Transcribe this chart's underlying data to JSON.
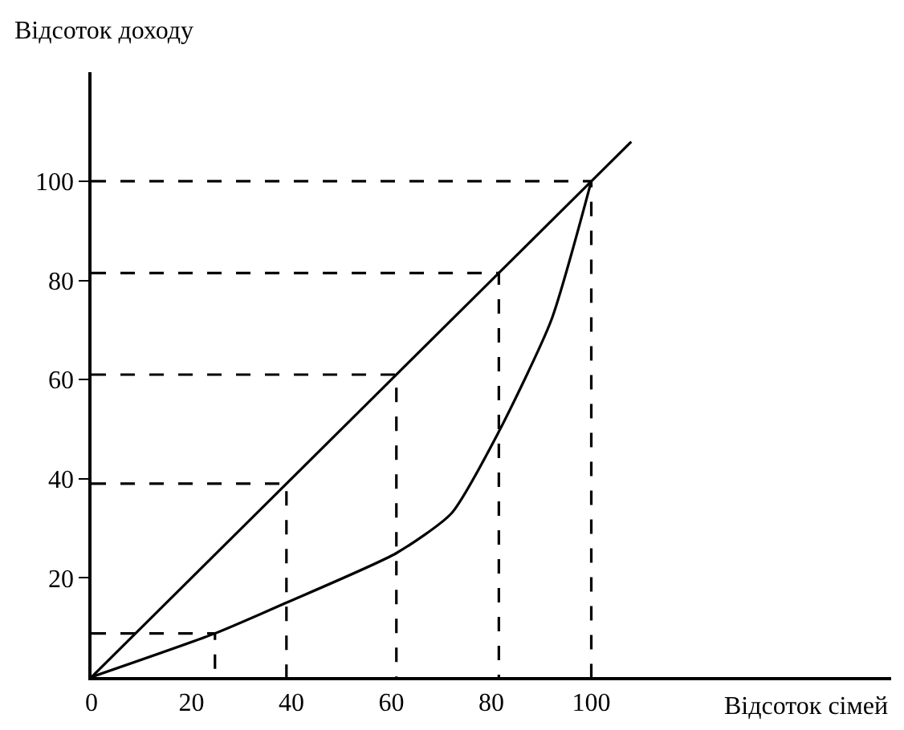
{
  "chart_data": {
    "type": "line",
    "xlabel": "Відсоток сімей",
    "ylabel": "Відсоток доходу",
    "xlim": [
      0,
      160
    ],
    "ylim": [
      0,
      122
    ],
    "xticks": [
      0,
      20,
      40,
      60,
      80,
      100
    ],
    "yticks": [
      20,
      40,
      60,
      80,
      100
    ],
    "marker": "none",
    "series": [
      {
        "color": "#000000",
        "x": [
          0,
          108
        ],
        "values": [
          0,
          108
        ],
        "line_style": "solid"
      },
      {
        "color": "#000000",
        "x": [
          0,
          24.7,
          39,
          61,
          72,
          81.5,
          92,
          100
        ],
        "values": [
          0,
          8.8,
          15,
          25,
          33,
          49.5,
          72,
          100
        ],
        "line_style": "solid"
      },
      {
        "color": "#000000",
        "x": [
          0,
          24.7,
          24.7
        ],
        "values": [
          8.8,
          8.8,
          0
        ],
        "line_style": "dashed"
      },
      {
        "color": "#000000",
        "x": [
          0,
          39,
          39
        ],
        "values": [
          39,
          39,
          0
        ],
        "line_style": "dashed"
      },
      {
        "color": "#000000",
        "x": [
          0,
          61,
          61
        ],
        "values": [
          61,
          61,
          0
        ],
        "line_style": "dashed"
      },
      {
        "color": "#000000",
        "x": [
          0,
          81.5,
          81.5
        ],
        "values": [
          81.5,
          81.5,
          0
        ],
        "line_style": "dashed"
      },
      {
        "color": "#000000",
        "x": [
          0,
          100,
          100
        ],
        "values": [
          100,
          100,
          0
        ],
        "line_style": "dashed"
      }
    ]
  }
}
